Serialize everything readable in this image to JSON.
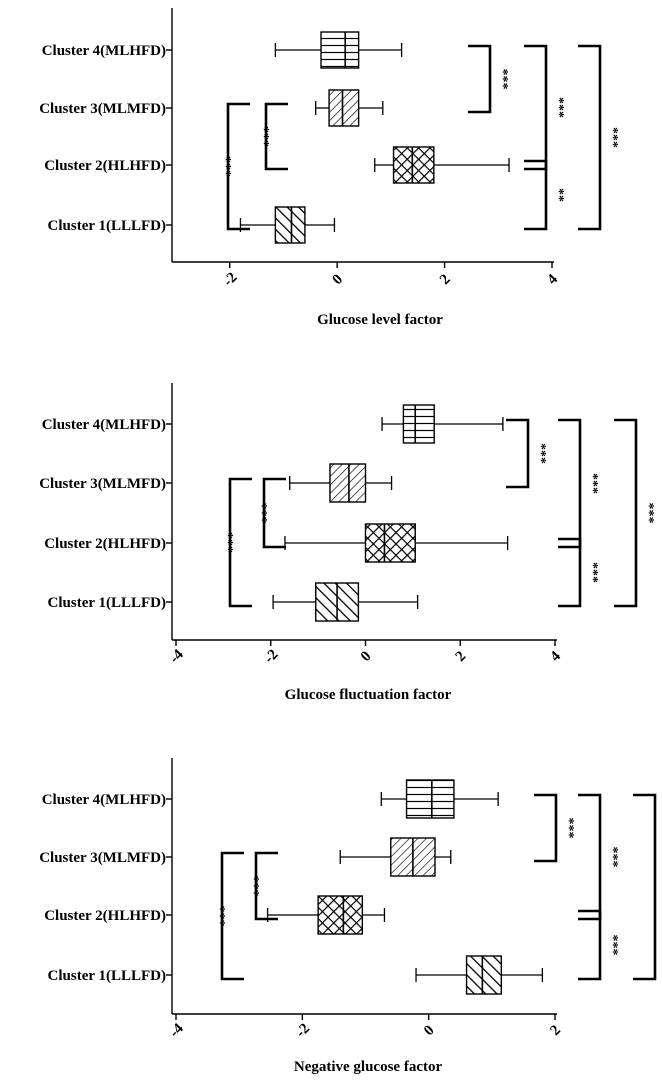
{
  "chart_data": [
    {
      "type": "boxplot",
      "xlabel": "Glucose level factor",
      "xlim": [
        -3,
        4
      ],
      "xticks": [
        -2,
        0,
        2,
        4
      ],
      "tick_labels": [
        "-2",
        "0",
        "2",
        "4"
      ],
      "categories": [
        "Cluster 4(MLHFD)",
        "Cluster 3(MLMFD)",
        "Cluster 2(HLHFD)",
        "Cluster 1(LLLFD)"
      ],
      "boxes": [
        {
          "label": "Cluster 4(MLHFD)",
          "pattern": "vertical-horizontal",
          "min": -1.15,
          "q1": -0.3,
          "median": 0.15,
          "q3": 0.4,
          "max": 1.2
        },
        {
          "label": "Cluster 3(MLMFD)",
          "pattern": "diagonal-right",
          "min": -0.4,
          "q1": -0.15,
          "median": 0.1,
          "q3": 0.4,
          "max": 0.85
        },
        {
          "label": "Cluster 2(HLHFD)",
          "pattern": "crosshatch",
          "min": 0.7,
          "q1": 1.05,
          "median": 1.4,
          "q3": 1.8,
          "max": 3.2
        },
        {
          "label": "Cluster 1(LLLFD)",
          "pattern": "diagonal-left",
          "min": -1.8,
          "q1": -1.15,
          "median": -0.85,
          "q3": -0.6,
          "max": -0.05
        }
      ],
      "significance": [
        {
          "from": "Cluster 3(MLMFD)",
          "to": "Cluster 2(HLHFD)",
          "label": "***",
          "side": "left"
        },
        {
          "from": "Cluster 3(MLMFD)",
          "to": "Cluster 1(LLLFD)",
          "label": "***",
          "side": "left"
        },
        {
          "from": "Cluster 4(MLHFD)",
          "to": "Cluster 3(MLMFD)",
          "label": "***",
          "side": "right"
        },
        {
          "from": "Cluster 4(MLHFD)",
          "to": "Cluster 2(HLHFD)",
          "label": "***",
          "side": "right"
        },
        {
          "from": "Cluster 2(HLHFD)",
          "to": "Cluster 1(LLLFD)",
          "label": "**",
          "side": "right"
        },
        {
          "from": "Cluster 4(MLHFD)",
          "to": "Cluster 1(LLLFD)",
          "label": "***",
          "side": "right"
        }
      ]
    },
    {
      "type": "boxplot",
      "xlabel": "Glucose fluctuation factor",
      "xlim": [
        -4,
        4
      ],
      "xticks": [
        -4,
        -2,
        0,
        2,
        4
      ],
      "tick_labels": [
        "-4",
        "-2",
        "0",
        "2",
        "4"
      ],
      "categories": [
        "Cluster 4(MLHFD)",
        "Cluster 3(MLMFD)",
        "Cluster 2(HLHFD)",
        "Cluster 1(LLLFD)"
      ],
      "boxes": [
        {
          "label": "Cluster 4(MLHFD)",
          "pattern": "vertical-horizontal",
          "min": 0.35,
          "q1": 0.8,
          "median": 1.05,
          "q3": 1.45,
          "max": 2.9
        },
        {
          "label": "Cluster 3(MLMFD)",
          "pattern": "diagonal-right",
          "min": -1.6,
          "q1": -0.75,
          "median": -0.35,
          "q3": 0.0,
          "max": 0.55
        },
        {
          "label": "Cluster 2(HLHFD)",
          "pattern": "crosshatch",
          "min": -1.7,
          "q1": 0.0,
          "median": 0.4,
          "q3": 1.05,
          "max": 3.0
        },
        {
          "label": "Cluster 1(LLLFD)",
          "pattern": "diagonal-left",
          "min": -1.95,
          "q1": -1.05,
          "median": -0.6,
          "q3": -0.15,
          "max": 1.1
        }
      ],
      "significance": [
        {
          "from": "Cluster 3(MLMFD)",
          "to": "Cluster 2(HLHFD)",
          "label": "***",
          "side": "left"
        },
        {
          "from": "Cluster 3(MLMFD)",
          "to": "Cluster 1(LLLFD)",
          "label": "***",
          "side": "left"
        },
        {
          "from": "Cluster 4(MLHFD)",
          "to": "Cluster 3(MLMFD)",
          "label": "***",
          "side": "right"
        },
        {
          "from": "Cluster 4(MLHFD)",
          "to": "Cluster 2(HLHFD)",
          "label": "***",
          "side": "right"
        },
        {
          "from": "Cluster 2(HLHFD)",
          "to": "Cluster 1(LLLFD)",
          "label": "***",
          "side": "right"
        },
        {
          "from": "Cluster 4(MLHFD)",
          "to": "Cluster 1(LLLFD)",
          "label": "***",
          "side": "right"
        }
      ]
    },
    {
      "type": "boxplot",
      "xlabel": "Negative glucose factor",
      "xlim": [
        -4,
        2
      ],
      "xticks": [
        -4,
        -2,
        0,
        2
      ],
      "tick_labels": [
        "-4",
        "-2",
        "0",
        "2"
      ],
      "categories": [
        "Cluster 4(MLHFD)",
        "Cluster 3(MLMFD)",
        "Cluster 2(HLHFD)",
        "Cluster 1(LLLFD)"
      ],
      "boxes": [
        {
          "label": "Cluster 4(MLHFD)",
          "pattern": "vertical-horizontal",
          "min": -0.75,
          "q1": -0.35,
          "median": 0.05,
          "q3": 0.4,
          "max": 1.1
        },
        {
          "label": "Cluster 3(MLMFD)",
          "pattern": "diagonal-right",
          "min": -1.4,
          "q1": -0.6,
          "median": -0.25,
          "q3": 0.1,
          "max": 0.35
        },
        {
          "label": "Cluster 2(HLHFD)",
          "pattern": "crosshatch",
          "min": -2.55,
          "q1": -1.75,
          "median": -1.35,
          "q3": -1.05,
          "max": -0.7
        },
        {
          "label": "Cluster 1(LLLFD)",
          "pattern": "diagonal-left",
          "min": -0.2,
          "q1": 0.6,
          "median": 0.85,
          "q3": 1.15,
          "max": 1.8
        }
      ],
      "significance": [
        {
          "from": "Cluster 3(MLMFD)",
          "to": "Cluster 2(HLHFD)",
          "label": "***",
          "side": "left"
        },
        {
          "from": "Cluster 3(MLMFD)",
          "to": "Cluster 1(LLLFD)",
          "label": "***",
          "side": "left"
        },
        {
          "from": "Cluster 4(MLHFD)",
          "to": "Cluster 3(MLMFD)",
          "label": "***",
          "side": "right"
        },
        {
          "from": "Cluster 4(MLHFD)",
          "to": "Cluster 2(HLHFD)",
          "label": "***",
          "side": "right"
        },
        {
          "from": "Cluster 2(HLHFD)",
          "to": "Cluster 1(LLLFD)",
          "label": "***",
          "side": "right"
        },
        {
          "from": "Cluster 4(MLHFD)",
          "to": "Cluster 1(LLLFD)",
          "label": "***",
          "side": "right"
        }
      ]
    }
  ]
}
